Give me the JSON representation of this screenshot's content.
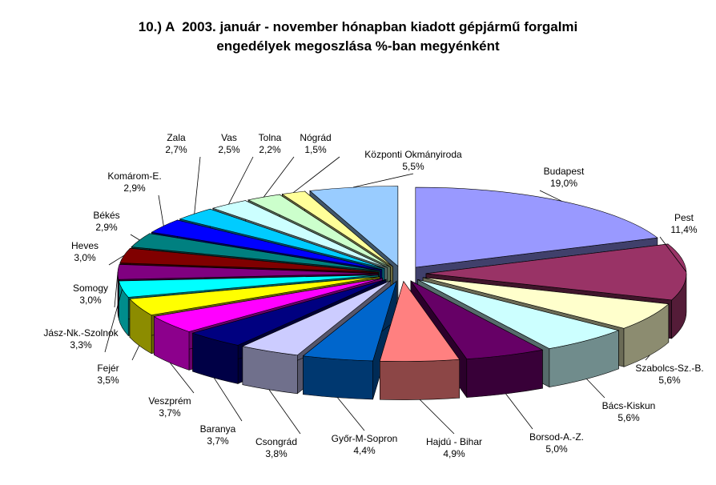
{
  "chart_data": {
    "type": "pie",
    "variant": "exploded-3d",
    "title_lines": [
      "10.) A  2003. január - november hónapban kiadott gépjármű forgalmi",
      "engedélyek megoszlása %-ban megyénként"
    ],
    "slices": [
      {
        "label": "Budapest",
        "value": "19,0%",
        "pct": 19.0,
        "color": "#9999ff"
      },
      {
        "label": "Pest",
        "value": "11,4%",
        "pct": 11.4,
        "color": "#993366"
      },
      {
        "label": "Szabolcs-Sz.-B.",
        "value": "5,6%",
        "pct": 5.6,
        "color": "#ffffcc"
      },
      {
        "label": "Bács-Kiskun",
        "value": "5,6%",
        "pct": 5.6,
        "color": "#ccffff"
      },
      {
        "label": "Borsod-A.-Z.",
        "value": "5,0%",
        "pct": 5.0,
        "color": "#660066"
      },
      {
        "label": "Hajdú - Bihar",
        "value": "4,9%",
        "pct": 4.9,
        "color": "#ff8080"
      },
      {
        "label": "Győr-M-Sopron",
        "value": "4,4%",
        "pct": 4.4,
        "color": "#0066cc"
      },
      {
        "label": "Csongrád",
        "value": "3,8%",
        "pct": 3.8,
        "color": "#ccccff"
      },
      {
        "label": "Baranya",
        "value": "3,7%",
        "pct": 3.7,
        "color": "#000080"
      },
      {
        "label": "Veszprém",
        "value": "3,7%",
        "pct": 3.7,
        "color": "#ff00ff"
      },
      {
        "label": "Fejér",
        "value": "3,5%",
        "pct": 3.5,
        "color": "#ffff00"
      },
      {
        "label": "Jász-Nk.-Szolnok",
        "value": "3,3%",
        "pct": 3.3,
        "color": "#00ffff"
      },
      {
        "label": "Somogy",
        "value": "3,0%",
        "pct": 3.0,
        "color": "#800080"
      },
      {
        "label": "Heves",
        "value": "3,0%",
        "pct": 3.0,
        "color": "#800000"
      },
      {
        "label": "Békés",
        "value": "2,9%",
        "pct": 2.9,
        "color": "#008080"
      },
      {
        "label": "Komárom-E.",
        "value": "2,9%",
        "pct": 2.9,
        "color": "#0000ff"
      },
      {
        "label": "Zala",
        "value": "2,7%",
        "pct": 2.7,
        "color": "#00ccff"
      },
      {
        "label": "Vas",
        "value": "2,5%",
        "pct": 2.5,
        "color": "#ccffff"
      },
      {
        "label": "Tolna",
        "value": "2,2%",
        "pct": 2.2,
        "color": "#ccffcc"
      },
      {
        "label": "Nógrád",
        "value": "1,5%",
        "pct": 1.5,
        "color": "#ffff99"
      },
      {
        "label": "Központi Okmányiroda",
        "value": "5,5%",
        "pct": 5.5,
        "color": "#99ccff"
      }
    ],
    "legend": "none",
    "label_placement": "outside-with-leader-lines"
  }
}
